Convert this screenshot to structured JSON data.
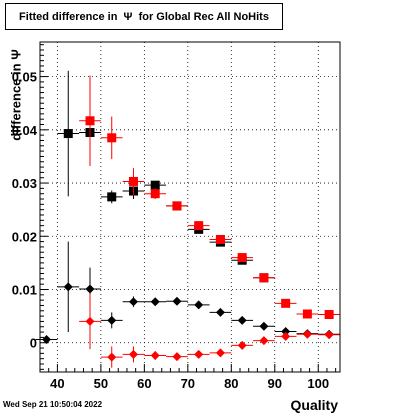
{
  "title": "Fitted difference in  Ψ  for Global Rec All NoHits",
  "timestamp": "Wed Sep 21 10:50:04 2022",
  "chart_data": {
    "type": "scatter",
    "title": "Fitted difference in  Ψ  for Global Rec All NoHits",
    "xlabel": "Quality",
    "ylabel": "difference in  Ψ",
    "xlim": [
      36,
      105
    ],
    "ylim": [
      -0.0055,
      0.0565
    ],
    "grid": true,
    "x_ticks": [
      40,
      50,
      60,
      70,
      80,
      90,
      100
    ],
    "x_tick_labels": [
      "40",
      "50",
      "60",
      "70",
      "80",
      "90",
      "100"
    ],
    "y_ticks": [
      0,
      0.01,
      0.02,
      0.03,
      0.04,
      0.05
    ],
    "y_tick_labels": [
      "0",
      "0.01",
      "0.02",
      "0.03",
      "0.04",
      "0.05"
    ],
    "series": [
      {
        "marker": "square",
        "color": "#000000",
        "points": [
          {
            "x": 42.5,
            "y": 0.0393,
            "yerr": 0.0118,
            "xerr": 2.5
          },
          {
            "x": 47.5,
            "y": 0.0395,
            "yerr": 0.0025,
            "xerr": 2.5
          },
          {
            "x": 52.5,
            "y": 0.0274,
            "yerr": 0.0012,
            "xerr": 2.5
          },
          {
            "x": 57.5,
            "y": 0.0285,
            "yerr": 0.0015,
            "xerr": 2.5
          },
          {
            "x": 62.5,
            "y": 0.0296,
            "yerr": 0.0007,
            "xerr": 2.5
          },
          {
            "x": 67.5,
            "y": 0.0257,
            "yerr": 0.0004,
            "xerr": 2.5
          },
          {
            "x": 72.5,
            "y": 0.0213,
            "yerr": 0.0003,
            "xerr": 2.5
          },
          {
            "x": 77.5,
            "y": 0.0189,
            "yerr": 0.0003,
            "xerr": 2.5
          },
          {
            "x": 82.5,
            "y": 0.0155,
            "yerr": 0.0002,
            "xerr": 2.5
          },
          {
            "x": 87.5,
            "y": 0.0122,
            "yerr": 0.0002,
            "xerr": 2.5
          }
        ]
      },
      {
        "marker": "square",
        "color": "#ff0000",
        "points": [
          {
            "x": 47.5,
            "y": 0.0417,
            "yerr": 0.0085,
            "xerr": 2.5
          },
          {
            "x": 52.5,
            "y": 0.0385,
            "yerr": 0.004,
            "xerr": 2.5
          },
          {
            "x": 57.5,
            "y": 0.0303,
            "yerr": 0.0025,
            "xerr": 2.5
          },
          {
            "x": 62.5,
            "y": 0.028,
            "yerr": 0.001,
            "xerr": 2.5
          },
          {
            "x": 67.5,
            "y": 0.0257,
            "yerr": 0.0005,
            "xerr": 2.5
          },
          {
            "x": 72.5,
            "y": 0.022,
            "yerr": 0.0004,
            "xerr": 2.5
          },
          {
            "x": 77.5,
            "y": 0.0194,
            "yerr": 0.0003,
            "xerr": 2.5
          },
          {
            "x": 82.5,
            "y": 0.016,
            "yerr": 0.0002,
            "xerr": 2.5
          },
          {
            "x": 87.5,
            "y": 0.0122,
            "yerr": 0.0002,
            "xerr": 2.5
          },
          {
            "x": 92.5,
            "y": 0.0074,
            "yerr": 0.0002,
            "xerr": 2.5
          },
          {
            "x": 97.5,
            "y": 0.0054,
            "yerr": 0.0002,
            "xerr": 2.5
          },
          {
            "x": 102.5,
            "y": 0.0053,
            "yerr": 0.0002,
            "xerr": 2.5
          }
        ]
      },
      {
        "marker": "diamond",
        "color": "#000000",
        "points": [
          {
            "x": 37.5,
            "y": 0.0006,
            "yerr": 0.0003,
            "xerr": 2.5
          },
          {
            "x": 42.5,
            "y": 0.0105,
            "yerr": 0.0085,
            "xerr": 2.5
          },
          {
            "x": 47.5,
            "y": 0.0101,
            "yerr": 0.004,
            "xerr": 2.5
          },
          {
            "x": 52.5,
            "y": 0.0042,
            "yerr": 0.0015,
            "xerr": 2.5
          },
          {
            "x": 57.5,
            "y": 0.0077,
            "yerr": 0.001,
            "xerr": 2.5
          },
          {
            "x": 62.5,
            "y": 0.0077,
            "yerr": 0.0005,
            "xerr": 2.5
          },
          {
            "x": 67.5,
            "y": 0.0078,
            "yerr": 0.0004,
            "xerr": 2.5
          },
          {
            "x": 72.5,
            "y": 0.0071,
            "yerr": 0.0003,
            "xerr": 2.5
          },
          {
            "x": 77.5,
            "y": 0.0057,
            "yerr": 0.0003,
            "xerr": 2.5
          },
          {
            "x": 82.5,
            "y": 0.0042,
            "yerr": 0.0002,
            "xerr": 2.5
          },
          {
            "x": 87.5,
            "y": 0.0031,
            "yerr": 0.0002,
            "xerr": 2.5
          },
          {
            "x": 92.5,
            "y": 0.0021,
            "yerr": 0.0002,
            "xerr": 2.5
          },
          {
            "x": 97.5,
            "y": 0.0017,
            "yerr": 0.0002,
            "xerr": 2.5
          },
          {
            "x": 102.5,
            "y": 0.0016,
            "yerr": 0.0002,
            "xerr": 2.5
          }
        ]
      },
      {
        "marker": "diamond",
        "color": "#ff0000",
        "points": [
          {
            "x": 47.5,
            "y": 0.004,
            "yerr": 0.0052,
            "xerr": 2.5
          },
          {
            "x": 52.5,
            "y": -0.0027,
            "yerr": 0.002,
            "xerr": 2.5
          },
          {
            "x": 57.5,
            "y": -0.0022,
            "yerr": 0.0015,
            "xerr": 2.5
          },
          {
            "x": 62.5,
            "y": -0.0024,
            "yerr": 0.0008,
            "xerr": 2.5
          },
          {
            "x": 67.5,
            "y": -0.0026,
            "yerr": 0.0005,
            "xerr": 2.5
          },
          {
            "x": 72.5,
            "y": -0.0022,
            "yerr": 0.0004,
            "xerr": 2.5
          },
          {
            "x": 77.5,
            "y": -0.0019,
            "yerr": 0.0003,
            "xerr": 2.5
          },
          {
            "x": 82.5,
            "y": -0.0005,
            "yerr": 0.0002,
            "xerr": 2.5
          },
          {
            "x": 87.5,
            "y": 0.0004,
            "yerr": 0.0002,
            "xerr": 2.5
          },
          {
            "x": 92.5,
            "y": 0.0012,
            "yerr": 0.0002,
            "xerr": 2.5
          },
          {
            "x": 97.5,
            "y": 0.0016,
            "yerr": 0.0002,
            "xerr": 2.5
          },
          {
            "x": 102.5,
            "y": 0.0015,
            "yerr": 0.0002,
            "xerr": 2.5
          }
        ]
      }
    ]
  }
}
